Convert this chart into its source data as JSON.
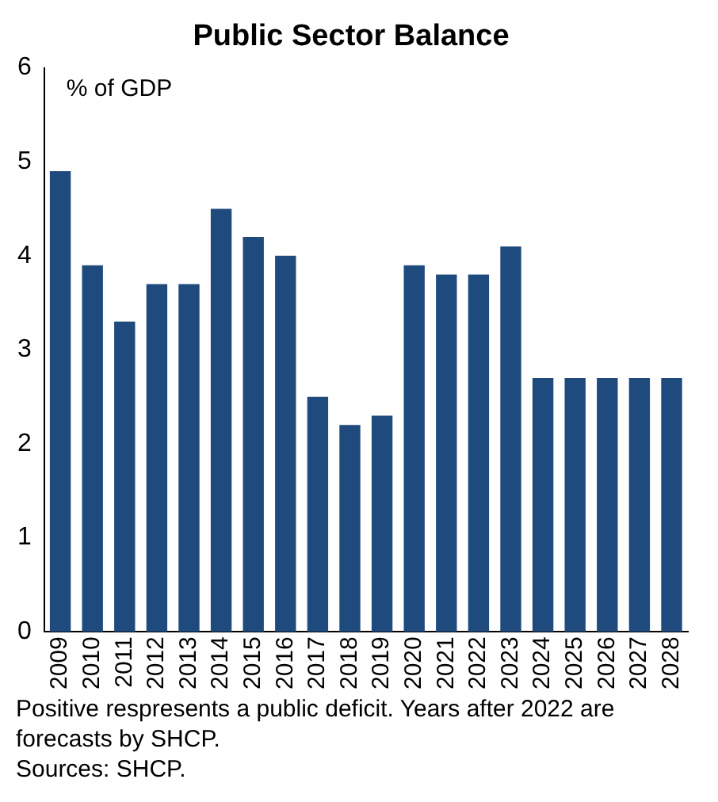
{
  "chart_data": {
    "type": "bar",
    "title": "Public Sector Balance",
    "ylabel": "% of GDP",
    "categories": [
      "2009",
      "2010",
      "2011",
      "2012",
      "2013",
      "2014",
      "2015",
      "2016",
      "2017",
      "2018",
      "2019",
      "2020",
      "2021",
      "2022",
      "2023",
      "2024",
      "2025",
      "2026",
      "2027",
      "2028"
    ],
    "values": [
      4.9,
      3.9,
      3.3,
      3.7,
      3.7,
      4.5,
      4.2,
      4.0,
      2.5,
      2.2,
      2.3,
      3.9,
      3.8,
      3.8,
      4.1,
      2.7,
      2.7,
      2.7,
      2.7,
      2.7
    ],
    "color": "#1f4a7e",
    "ylim": [
      0,
      6
    ],
    "yticks": [
      0,
      1,
      2,
      3,
      4,
      5,
      6
    ],
    "grid": false,
    "legend": false,
    "annotations": [
      "Positive respresents a public deficit. Years after 2022 are forecasts by SHCP.",
      "Sources: SHCP."
    ]
  }
}
